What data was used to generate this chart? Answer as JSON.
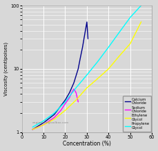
{
  "xlabel": "Concentration (%)",
  "ylabel": "Viscosity (centipoises)",
  "xlim": [
    0,
    60
  ],
  "ylim_log": [
    1,
    100
  ],
  "fig_background": "#d8d8d8",
  "plot_background": "#d8d8d8",
  "grid_color": "#ffffff",
  "watermark": "engineeringtoolbox.com",
  "series": [
    {
      "name": "Calcium\nChloride",
      "color": "#00008B",
      "x": [
        5,
        10,
        15,
        20,
        22,
        24,
        26,
        27,
        28,
        29,
        30,
        30.5
      ],
      "y": [
        1.1,
        1.4,
        1.9,
        3.2,
        4.2,
        6.0,
        10.0,
        15.0,
        22.0,
        35.0,
        55.0,
        30.0
      ]
    },
    {
      "name": "Sodium\nChloride",
      "color": "#FF00FF",
      "x": [
        5,
        10,
        15,
        18,
        20,
        22,
        23,
        24,
        25,
        26
      ],
      "y": [
        1.1,
        1.3,
        1.7,
        2.2,
        2.8,
        3.5,
        4.2,
        4.8,
        4.2,
        3.0
      ]
    },
    {
      "name": "Ethylene\nGlycol",
      "color": "#FFFF00",
      "x": [
        5,
        10,
        15,
        20,
        25,
        30,
        35,
        40,
        45,
        50,
        55
      ],
      "y": [
        1.1,
        1.3,
        1.6,
        2.2,
        3.2,
        5.0,
        7.0,
        10.0,
        16.0,
        25.0,
        55.0
      ]
    },
    {
      "name": "Propylene\nGlycol",
      "color": "#00FFFF",
      "x": [
        5,
        10,
        15,
        20,
        25,
        30,
        35,
        40,
        45,
        50,
        55
      ],
      "y": [
        1.2,
        1.5,
        2.0,
        3.0,
        5.0,
        8.0,
        13.0,
        22.0,
        38.0,
        65.0,
        100.0
      ]
    }
  ]
}
